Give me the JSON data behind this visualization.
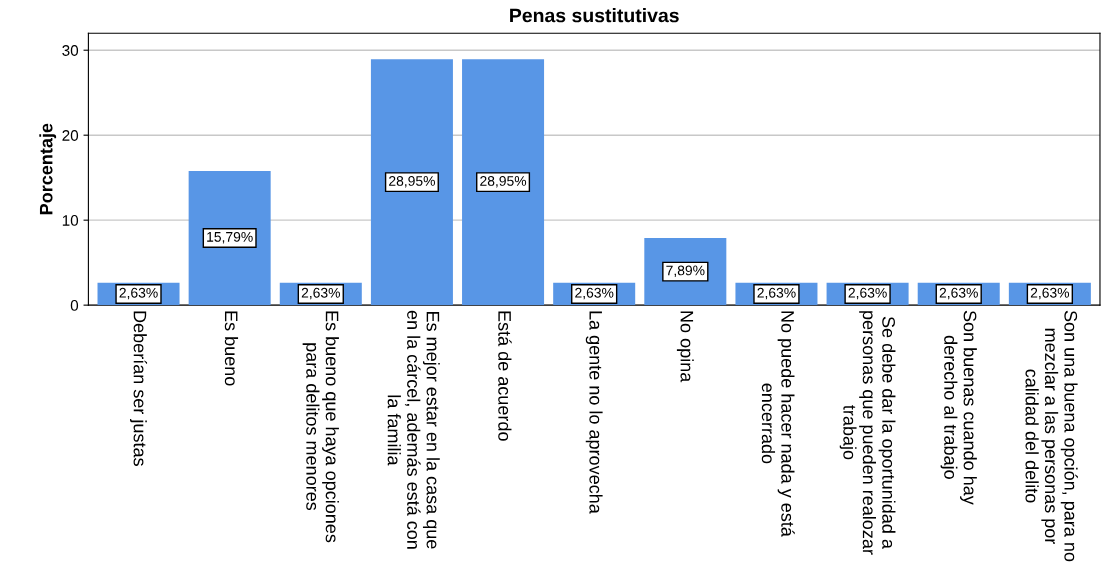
{
  "chart_data": {
    "type": "bar",
    "title": "Penas sustitutivas",
    "ylabel": "Porcentaje",
    "categories": [
      "Deberían ser justas",
      "Es bueno",
      "Es bueno que haya opciones\npara delitos menores",
      "Es mejor estar en la casa que\nen la cárcel, además está con\nla familia",
      "Está de acuerdo",
      "La gente no lo aprovecha",
      "No opina",
      "No puede hacer nada y está\nencerrado",
      "Se debe dar la oportunidad a\npersonas que pueden realozar\ntrabajo",
      "Son buenas cuando hay\nderecho al trabajo",
      "Son una buena opción, para no\nmezclar a las personas por\ncalidad del delito"
    ],
    "values": [
      2.63,
      15.79,
      2.63,
      28.95,
      28.95,
      2.63,
      7.89,
      2.63,
      2.63,
      2.63,
      2.63
    ],
    "value_labels": [
      "2,63%",
      "15,79%",
      "2,63%",
      "28,95%",
      "28,95%",
      "2,63%",
      "7,89%",
      "2,63%",
      "2,63%",
      "2,63%",
      "2,63%"
    ],
    "color": "#5896e6",
    "ylim": [
      0,
      32
    ],
    "yticks": [
      0,
      10,
      20,
      30
    ],
    "grid": "y"
  }
}
